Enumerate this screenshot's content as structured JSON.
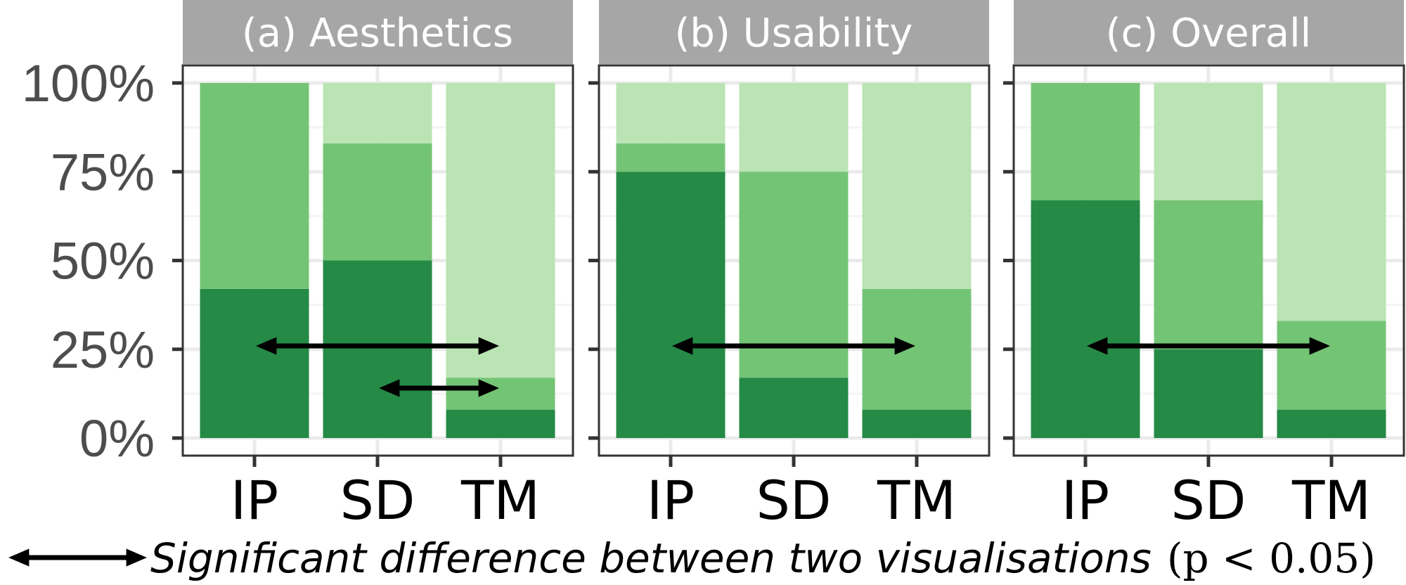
{
  "chart_data": [
    {
      "type": "bar",
      "stacked": true,
      "title": "(a) Aesthetics",
      "categories": [
        "IP",
        "SD",
        "TM"
      ],
      "series": [
        {
          "color": "#258a46",
          "values": [
            42,
            50,
            8
          ]
        },
        {
          "color": "#74c476",
          "values": [
            58,
            33,
            9
          ]
        },
        {
          "color": "#bae4b3",
          "values": [
            0,
            17,
            83
          ]
        }
      ],
      "ylim": [
        0,
        100
      ],
      "significance_arrows": [
        [
          "IP",
          "TM"
        ],
        [
          "SD",
          "TM"
        ]
      ]
    },
    {
      "type": "bar",
      "stacked": true,
      "title": "(b) Usability",
      "categories": [
        "IP",
        "SD",
        "TM"
      ],
      "series": [
        {
          "color": "#258a46",
          "values": [
            75,
            17,
            8
          ]
        },
        {
          "color": "#74c476",
          "values": [
            8,
            58,
            34
          ]
        },
        {
          "color": "#bae4b3",
          "values": [
            17,
            25,
            58
          ]
        }
      ],
      "ylim": [
        0,
        100
      ],
      "significance_arrows": [
        [
          "IP",
          "TM"
        ]
      ]
    },
    {
      "type": "bar",
      "stacked": true,
      "title": "(c) Overall",
      "categories": [
        "IP",
        "SD",
        "TM"
      ],
      "series": [
        {
          "color": "#258a46",
          "values": [
            67,
            25,
            8
          ]
        },
        {
          "color": "#74c476",
          "values": [
            33,
            42,
            25
          ]
        },
        {
          "color": "#bae4b3",
          "values": [
            0,
            33,
            67
          ]
        }
      ],
      "ylim": [
        0,
        100
      ],
      "significance_arrows": [
        [
          "IP",
          "TM"
        ]
      ]
    }
  ],
  "y_ticks": [
    "0%",
    "25%",
    "50%",
    "75%",
    "100%"
  ],
  "caption": {
    "text": "Significant difference between two visualisations",
    "math": "(p < 0.05)"
  },
  "colors": {
    "strip_background": "#a6a6a6",
    "panel_border": "#333333",
    "gridline": "#ebebeb",
    "arrow": "#000000"
  }
}
